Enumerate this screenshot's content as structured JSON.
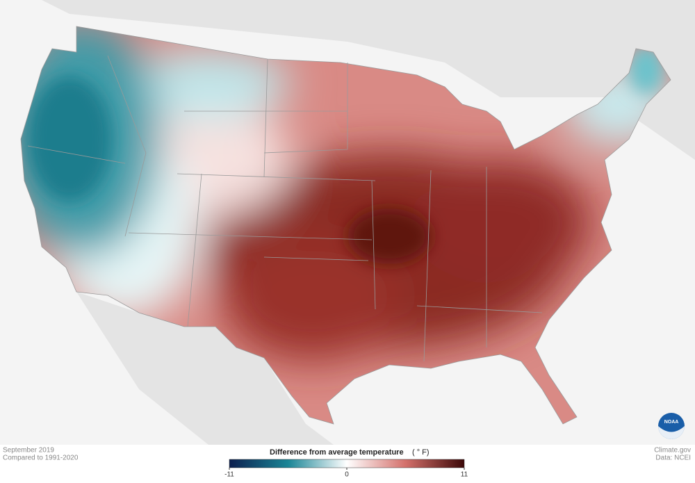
{
  "footer": {
    "period": "September 2019",
    "baseline": "Compared to 1991-2020",
    "source": "Climate.gov",
    "data": "Data: NCEI"
  },
  "logo": "NOAA",
  "legend": {
    "title": "Difference from average temperature",
    "unit": "( ° F)",
    "lim": [
      -11,
      11
    ],
    "ticks": [
      -11,
      0,
      11
    ],
    "colors": [
      "#0c1f4f",
      "#1a8596",
      "#ffffff",
      "#d4706b",
      "#3c0808"
    ]
  }
}
